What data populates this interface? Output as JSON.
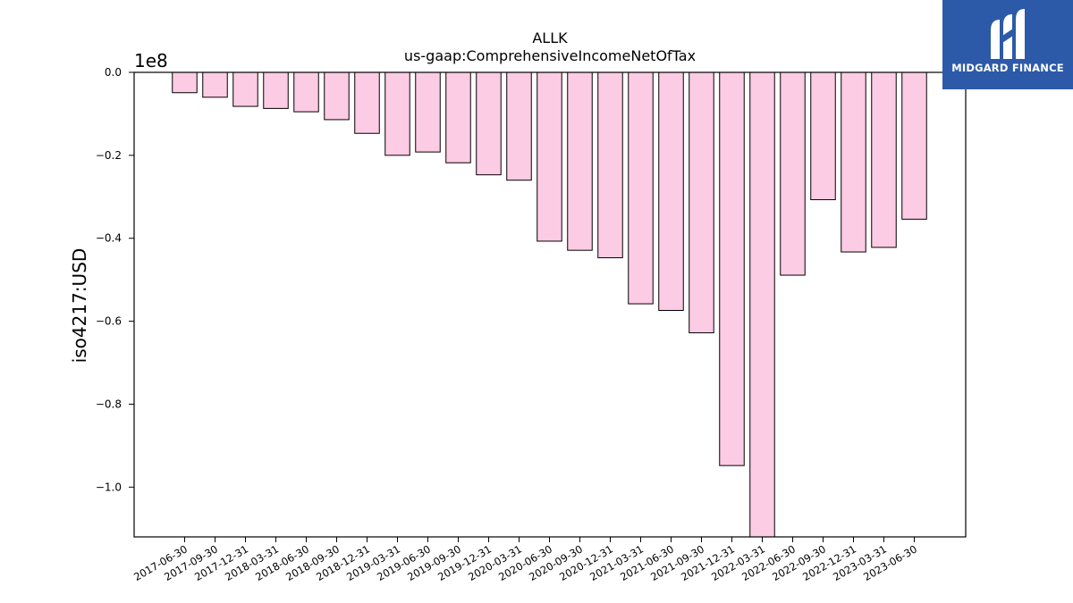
{
  "chart_data": {
    "type": "bar",
    "title": "ALLK",
    "subtitle": "us-gaap:ComprehensiveIncomeNetOfTax",
    "ylabel": "iso4217:USD",
    "xlabel": "",
    "y_multiplier_label": "1e8",
    "ylim": [
      -112000000,
      0
    ],
    "yticks": [
      0,
      -20000000,
      -40000000,
      -60000000,
      -80000000,
      -100000000
    ],
    "ytick_labels": [
      "0.0",
      "−0.2",
      "−0.4",
      "−0.6",
      "−0.8",
      "−1.0"
    ],
    "grid": false,
    "bar_color": "#fccbe4",
    "bar_edge_color": "#000000",
    "categories": [
      "2017-06-30",
      "2017-09-30",
      "2017-12-31",
      "2018-03-31",
      "2018-06-30",
      "2018-09-30",
      "2018-12-31",
      "2019-03-31",
      "2019-06-30",
      "2019-09-30",
      "2019-12-31",
      "2020-03-31",
      "2020-06-30",
      "2020-09-30",
      "2020-12-31",
      "2021-03-31",
      "2021-06-30",
      "2021-09-30",
      "2021-12-31",
      "2022-03-31",
      "2022-06-30",
      "2022-09-30",
      "2022-12-31",
      "2023-03-31",
      "2023-06-30"
    ],
    "values": [
      -4900000,
      -6000000,
      -8200000,
      -8700000,
      -9500000,
      -11400000,
      -14700000,
      -20000000,
      -19200000,
      -21800000,
      -24700000,
      -26000000,
      -40700000,
      -42900000,
      -44700000,
      -55800000,
      -57400000,
      -62800000,
      -94800000,
      -112000000,
      -48900000,
      -30700000,
      -43300000,
      -42200000,
      -35400000
    ]
  },
  "logo": {
    "text": "MIDGARD FINANCE",
    "icon": "midgard-logo-icon",
    "background": "#2d5aa8"
  }
}
